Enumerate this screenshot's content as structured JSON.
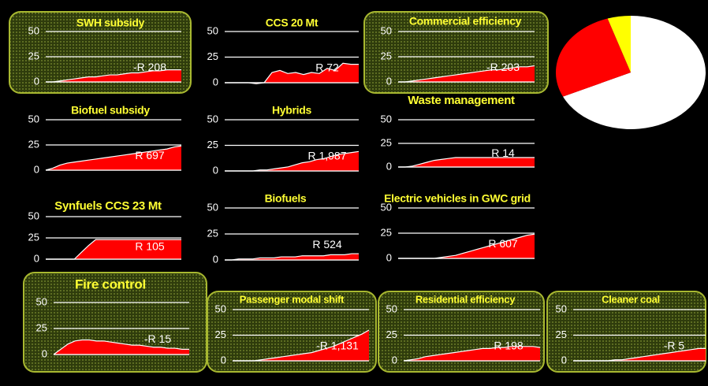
{
  "chart_data": [
    {
      "type": "area",
      "title": "SWH subsidy",
      "annotation": "-R 208",
      "values": [
        0,
        0,
        1,
        2,
        3,
        4,
        5,
        5,
        6,
        7,
        7,
        8,
        9,
        9,
        10,
        11,
        11,
        12,
        12,
        12
      ],
      "ylim": [
        0,
        50
      ],
      "yticks": [
        0,
        25,
        50
      ],
      "color": "#ff0000",
      "grid": true
    },
    {
      "type": "area",
      "title": "CCS 20 Mt",
      "annotation": "R 72",
      "values": [
        0,
        0,
        0,
        0,
        -1,
        0,
        10,
        12,
        9,
        10,
        8,
        10,
        9,
        14,
        12,
        19,
        18,
        18
      ],
      "ylim": [
        0,
        50
      ],
      "yticks": [
        0,
        25,
        50
      ],
      "color": "#ff0000",
      "grid": true
    },
    {
      "type": "area",
      "title": "Commercial efficiency",
      "annotation": "-R 203",
      "values": [
        0,
        0,
        1,
        2,
        3,
        4,
        5,
        6,
        7,
        8,
        9,
        10,
        11,
        12,
        12,
        13,
        14,
        15,
        15,
        16
      ],
      "ylim": [
        0,
        50
      ],
      "yticks": [
        0,
        25,
        50
      ],
      "color": "#ff0000",
      "grid": true
    },
    {
      "type": "area",
      "title": "Biofuel subsidy",
      "annotation": "R 697",
      "values": [
        0,
        2,
        5,
        7,
        8,
        9,
        10,
        11,
        12,
        13,
        14,
        15,
        16,
        17,
        18,
        19,
        20,
        21,
        23,
        24
      ],
      "ylim": [
        0,
        50
      ],
      "yticks": [
        0,
        25,
        50
      ],
      "color": "#ff0000",
      "grid": true
    },
    {
      "type": "area",
      "title": "Hybrids",
      "annotation": "R 1,987",
      "values": [
        0,
        0,
        0,
        0,
        0,
        1,
        1,
        2,
        3,
        4,
        6,
        8,
        9,
        11,
        12,
        14,
        16,
        17,
        18,
        19
      ],
      "ylim": [
        0,
        50
      ],
      "yticks": [
        0,
        25,
        50
      ],
      "color": "#ff0000",
      "grid": true
    },
    {
      "type": "area",
      "title": "Waste management",
      "annotation": "R 14",
      "values": [
        0,
        0,
        1,
        3,
        5,
        7,
        8,
        9,
        10,
        10,
        10,
        10,
        10,
        10,
        10,
        10,
        10,
        10,
        10,
        10
      ],
      "ylim": [
        0,
        50
      ],
      "yticks": [
        0,
        25,
        50
      ],
      "color": "#ff0000",
      "grid": true
    },
    {
      "type": "area",
      "title": "Synfuels CCS 23 Mt",
      "annotation": "R 105",
      "values": [
        0,
        0,
        0,
        0,
        0,
        8,
        16,
        23,
        23,
        23,
        23,
        23,
        23,
        23,
        23,
        23,
        23,
        23,
        23,
        23
      ],
      "ylim": [
        0,
        50
      ],
      "yticks": [
        0,
        25,
        50
      ],
      "color": "#ff0000",
      "grid": true
    },
    {
      "type": "area",
      "title": "Biofuels",
      "annotation": "R 524",
      "values": [
        0,
        0,
        1,
        1,
        1,
        2,
        2,
        2,
        3,
        3,
        3,
        4,
        4,
        4,
        4,
        5,
        5,
        5,
        6,
        6
      ],
      "ylim": [
        0,
        50
      ],
      "yticks": [
        0,
        25,
        50
      ],
      "color": "#ff0000",
      "grid": true
    },
    {
      "type": "area",
      "title": "Electric vehicles in GWC grid",
      "annotation": "R 607",
      "values": [
        0,
        0,
        0,
        0,
        0,
        0,
        1,
        2,
        3,
        5,
        7,
        9,
        11,
        13,
        15,
        17,
        19,
        21,
        23,
        24
      ],
      "ylim": [
        0,
        50
      ],
      "yticks": [
        0,
        25,
        50
      ],
      "color": "#ff0000",
      "grid": true
    },
    {
      "type": "area",
      "title": "Fire control",
      "annotation": "-R 15",
      "values": [
        0,
        5,
        10,
        13,
        14,
        14,
        13,
        13,
        12,
        11,
        10,
        9,
        9,
        8,
        7,
        7,
        6,
        6,
        5,
        5
      ],
      "ylim": [
        0,
        50
      ],
      "yticks": [
        0,
        25,
        50
      ],
      "color": "#ff0000",
      "grid": true
    },
    {
      "type": "area",
      "title": "Passenger modal shift",
      "annotation": "-R 1,131",
      "values": [
        0,
        0,
        0,
        0,
        1,
        2,
        3,
        4,
        5,
        6,
        7,
        8,
        10,
        12,
        14,
        17,
        20,
        23,
        26,
        30
      ],
      "ylim": [
        0,
        50
      ],
      "yticks": [
        0,
        25,
        50
      ],
      "color": "#ff0000",
      "grid": true
    },
    {
      "type": "area",
      "title": "Residential efficiency",
      "annotation": "R 198",
      "values": [
        0,
        1,
        2,
        4,
        5,
        6,
        7,
        8,
        9,
        10,
        11,
        12,
        12,
        13,
        13,
        14,
        14,
        14,
        14,
        13
      ],
      "ylim": [
        0,
        50
      ],
      "yticks": [
        0,
        25,
        50
      ],
      "color": "#ff0000",
      "grid": true
    },
    {
      "type": "area",
      "title": "Cleaner coal",
      "annotation": "-R 5",
      "values": [
        0,
        0,
        0,
        0,
        0,
        0,
        1,
        1,
        2,
        3,
        4,
        5,
        6,
        7,
        8,
        9,
        10,
        11,
        12,
        12
      ],
      "ylim": [
        0,
        50
      ],
      "yticks": [
        0,
        25,
        50
      ],
      "color": "#ff0000",
      "grid": true
    },
    {
      "type": "pie",
      "values": [
        68,
        27,
        5
      ],
      "colors": [
        "#ffffff",
        "#ff0000",
        "#ffff00"
      ]
    }
  ]
}
